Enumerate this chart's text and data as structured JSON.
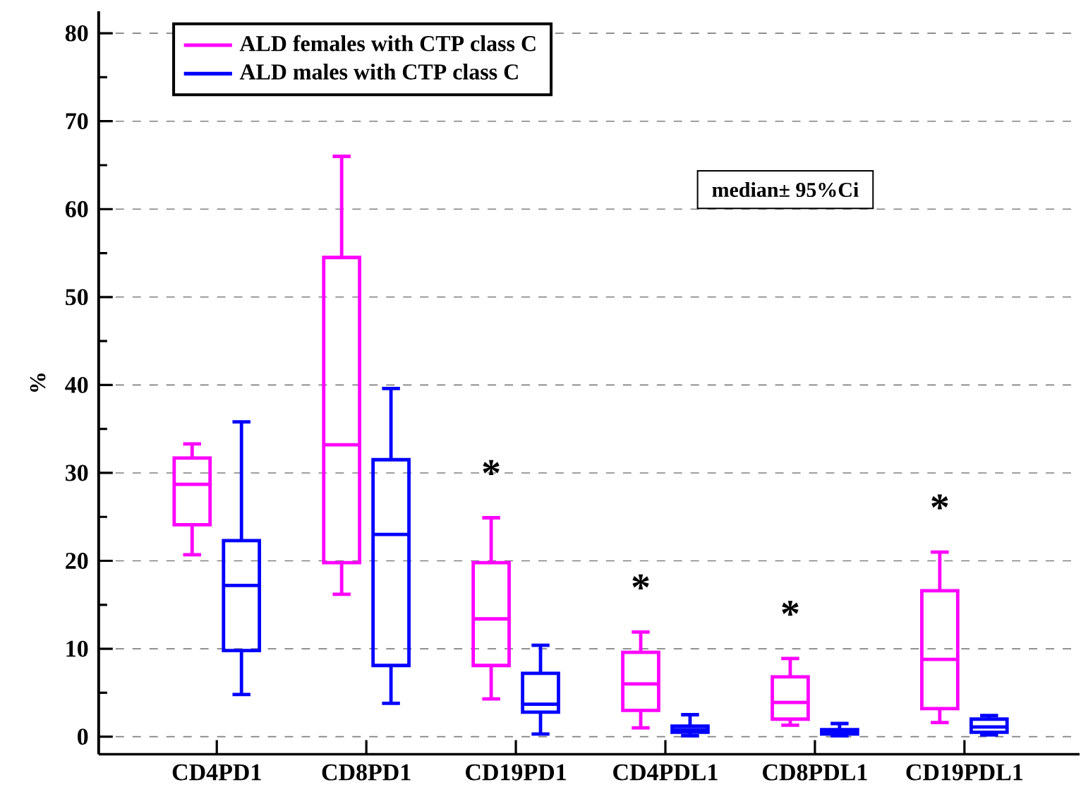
{
  "chart_data": {
    "type": "box",
    "ylabel": "%",
    "categories": [
      "CD4PD1",
      "CD8PD1",
      "CD19PD1",
      "CD4PDL1",
      "CD8PDL1",
      "CD19PDL1"
    ],
    "series": [
      {
        "name": "ALD females with CTP class C",
        "color": "#ff00ff",
        "boxes": [
          {
            "low": 20.7,
            "q1": 24.1,
            "median": 28.7,
            "q3": 31.7,
            "high": 33.3
          },
          {
            "low": 16.2,
            "q1": 19.8,
            "median": 33.2,
            "q3": 54.5,
            "high": 66
          },
          {
            "low": 4.3,
            "q1": 8.1,
            "median": 13.4,
            "q3": 19.8,
            "high": 24.9
          },
          {
            "low": 1.0,
            "q1": 3.0,
            "median": 6.0,
            "q3": 9.6,
            "high": 11.9
          },
          {
            "low": 1.3,
            "q1": 2.0,
            "median": 3.9,
            "q3": 6.8,
            "high": 8.9
          },
          {
            "low": 1.6,
            "q1": 3.2,
            "median": 8.8,
            "q3": 16.6,
            "high": 21.0
          }
        ]
      },
      {
        "name": "ALD males with CTP class C",
        "color": "#0000ff",
        "boxes": [
          {
            "low": 4.8,
            "q1": 9.8,
            "median": 17.2,
            "q3": 22.3,
            "high": 35.8
          },
          {
            "low": 3.8,
            "q1": 8.1,
            "median": 23,
            "q3": 31.5,
            "high": 39.6
          },
          {
            "low": 0.3,
            "q1": 2.8,
            "median": 3.7,
            "q3": 7.2,
            "high": 10.4
          },
          {
            "low": 0.1,
            "q1": 0.5,
            "median": 0.8,
            "q3": 1.2,
            "high": 2.5
          },
          {
            "low": 0.1,
            "q1": 0.3,
            "median": 0.5,
            "q3": 0.8,
            "high": 1.5
          },
          {
            "low": 0.2,
            "q1": 0.5,
            "median": 1.1,
            "q3": 2.0,
            "high": 2.4
          }
        ]
      }
    ],
    "ylim": [
      -2,
      82.5
    ],
    "yticks": [
      0,
      10,
      20,
      30,
      40,
      50,
      60,
      70,
      80
    ],
    "grid": "y",
    "legend": "top left",
    "annotations": [
      "median± 95%Ci",
      "*",
      "*",
      "*",
      "*"
    ]
  }
}
